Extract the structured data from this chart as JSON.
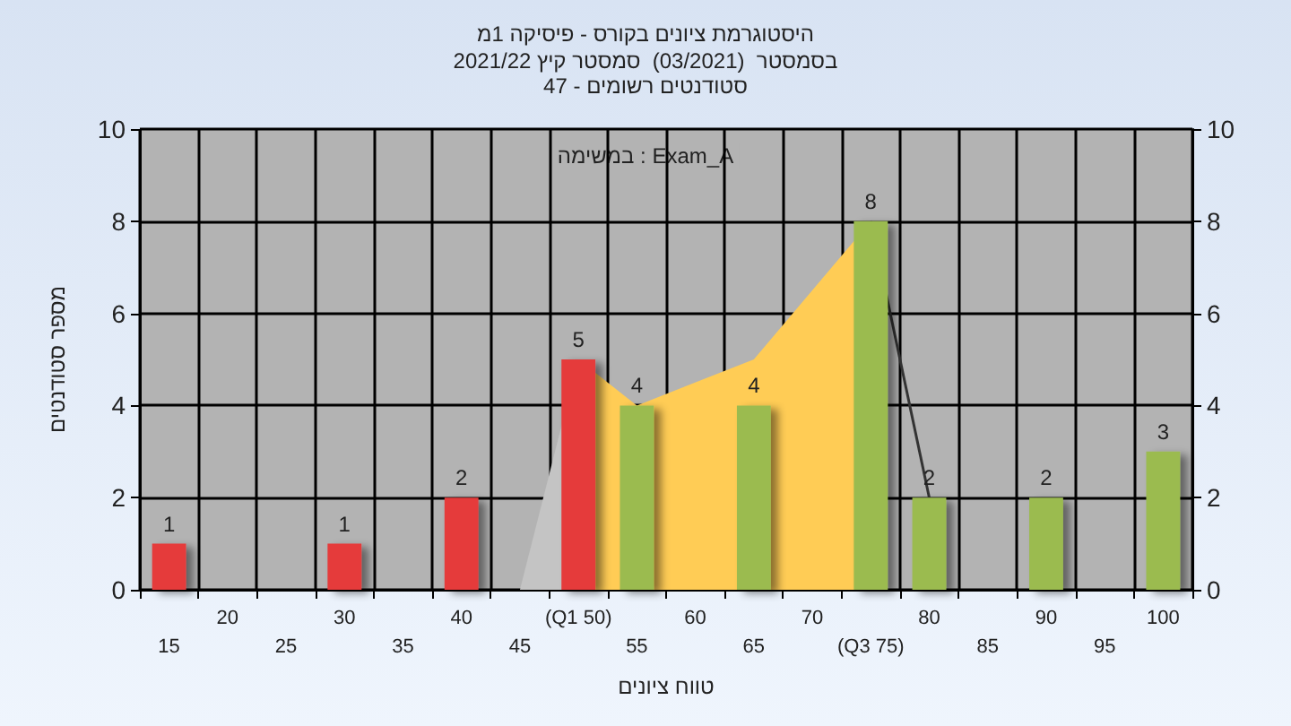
{
  "chart_data": {
    "type": "bar",
    "title": "היסטוגרמת ציונים בקורס - פיסיקה 1מ",
    "subtitle": "בסמסטר  (03/2021)  סמסטר קיץ 2021/22\nסטודנטים רשומים - 47",
    "annotations": [
      "במשימה : Exam_A"
    ],
    "xlabel": "טווח ציונים",
    "ylabel": "מספר סטודנטים",
    "categories": [
      "15",
      "20",
      "25",
      "30",
      "35",
      "40",
      "45",
      "(Q1 50)",
      "55",
      "60",
      "65",
      "70",
      "(Q3 75)",
      "80",
      "85",
      "90",
      "95",
      "100"
    ],
    "ylim": [
      0,
      10
    ],
    "yticks": [
      0,
      2,
      4,
      6,
      8,
      10
    ],
    "y2lim": [
      0,
      10
    ],
    "y2ticks": [
      0,
      2,
      4,
      6,
      8,
      10
    ],
    "grid": true,
    "series": [
      {
        "type": "area",
        "color": "#c4c4c4",
        "values": [
          null,
          null,
          null,
          null,
          null,
          null,
          0,
          5,
          null,
          null,
          null,
          null,
          null,
          null,
          null,
          null,
          null,
          null
        ]
      },
      {
        "type": "area",
        "color": "#ffcc55",
        "values": [
          null,
          null,
          null,
          null,
          null,
          null,
          null,
          5,
          4,
          null,
          5,
          null,
          8,
          null,
          null,
          null,
          null,
          null
        ]
      },
      {
        "type": "line",
        "color": "#333333",
        "values": [
          null,
          null,
          null,
          null,
          null,
          null,
          null,
          null,
          null,
          null,
          null,
          null,
          8,
          2,
          null,
          null,
          null,
          null
        ]
      },
      {
        "colors": [
          "#e53b3b",
          "#e53b3b",
          "#e53b3b",
          "#e53b3b",
          "#e53b3b",
          "#e53b3b",
          "#e53b3b",
          "#e53b3b",
          "#9bbb50",
          "#9bbb50",
          "#9bbb50",
          "#9bbb50",
          "#9bbb50",
          "#9bbb50",
          "#9bbb50",
          "#9bbb50",
          "#9bbb50",
          "#9bbb50"
        ],
        "values": [
          1,
          null,
          null,
          1,
          null,
          2,
          null,
          5,
          4,
          null,
          4,
          null,
          8,
          2,
          null,
          2,
          null,
          3
        ],
        "value_labels": [
          "1",
          null,
          null,
          "1",
          null,
          "2",
          null,
          "5",
          "4",
          null,
          "4",
          null,
          "8",
          "2",
          null,
          "2",
          null,
          "3"
        ]
      }
    ]
  }
}
